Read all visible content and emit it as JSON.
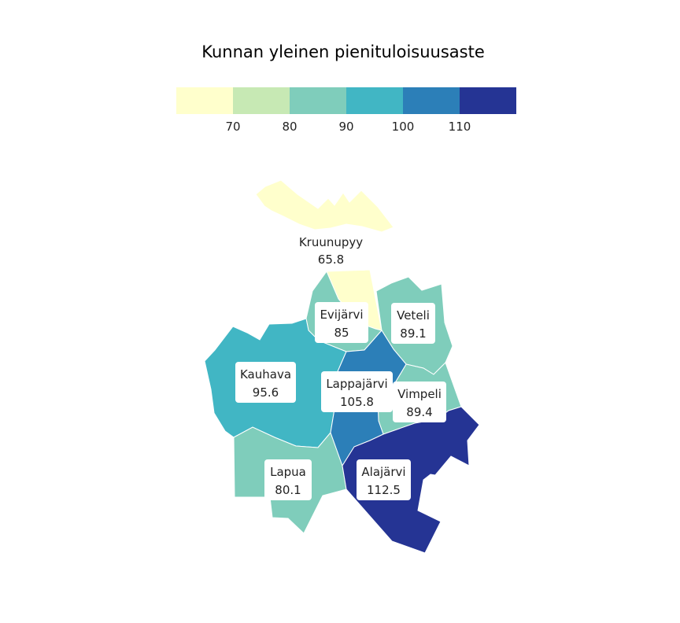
{
  "title": "Kunnan yleinen pienituloisuusaste",
  "legend": {
    "bins": [
      {
        "color": "#ffffcc"
      },
      {
        "color": "#c7e9b4"
      },
      {
        "color": "#7fcdbb"
      },
      {
        "color": "#41b6c4"
      },
      {
        "color": "#2c7fb8"
      },
      {
        "color": "#253494"
      }
    ],
    "ticks": [
      "70",
      "80",
      "90",
      "100",
      "110"
    ]
  },
  "regions": [
    {
      "id": "kruunupyy",
      "name": "Kruunupyy",
      "value": "65.8",
      "color": "#ffffcc"
    },
    {
      "id": "evijarvi",
      "name": "Evijärvi",
      "value": "85",
      "color": "#7fcdbb"
    },
    {
      "id": "veteli",
      "name": "Veteli",
      "value": "89.1",
      "color": "#7fcdbb"
    },
    {
      "id": "kauhava",
      "name": "Kauhava",
      "value": "95.6",
      "color": "#41b6c4"
    },
    {
      "id": "lappajarvi",
      "name": "Lappajärvi",
      "value": "105.8",
      "color": "#2c7fb8"
    },
    {
      "id": "vimpeli",
      "name": "Vimpeli",
      "value": "89.4",
      "color": "#7fcdbb"
    },
    {
      "id": "lapua",
      "name": "Lapua",
      "value": "80.1",
      "color": "#7fcdbb"
    },
    {
      "id": "alajarvi",
      "name": "Alajärvi",
      "value": "112.5",
      "color": "#253494"
    }
  ]
}
